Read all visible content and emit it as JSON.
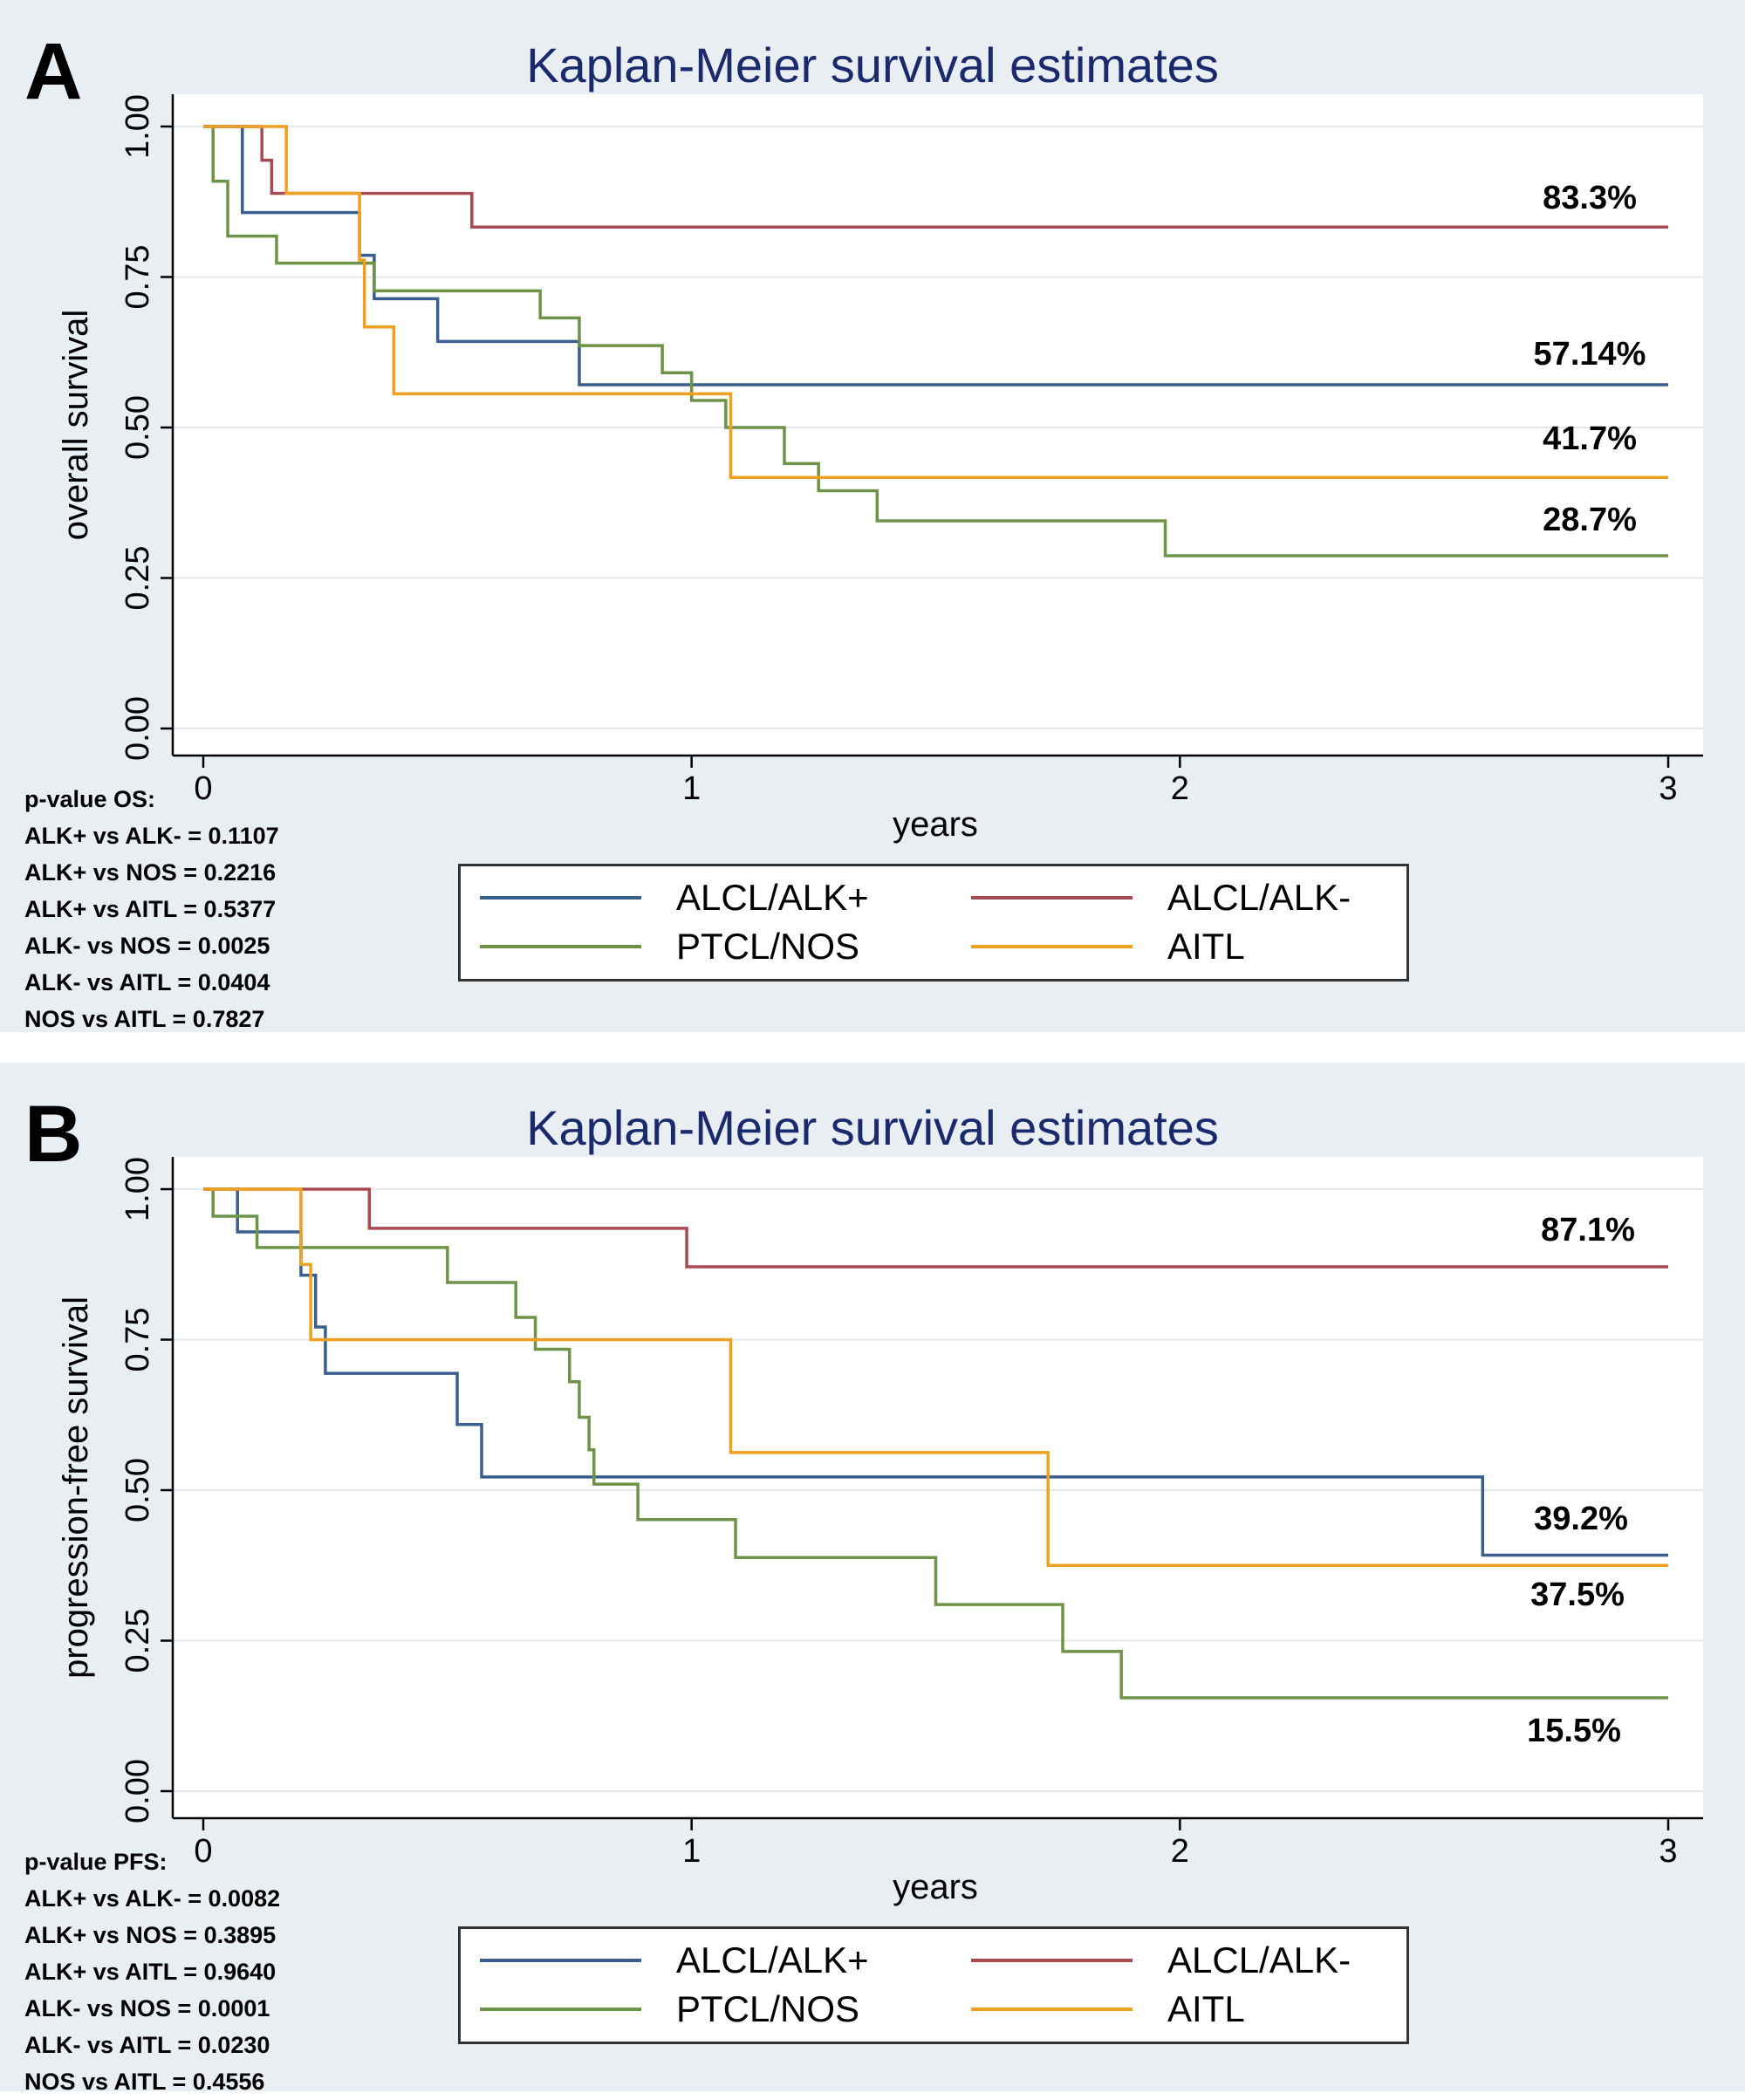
{
  "colors": {
    "ALCL/ALK+": "#3a5f8f",
    "ALCL/ALK-": "#a84a52",
    "PTCL/NOS": "#6e9348",
    "AITL": "#f0a020"
  },
  "chart_data": [
    {
      "type": "line",
      "panel_label": "A",
      "title": "Kaplan-Meier survival estimates",
      "xlabel": "years",
      "ylabel": "overall survival",
      "xlim": [
        0,
        3
      ],
      "ylim": [
        0,
        1
      ],
      "xticks": [
        "0",
        "1",
        "2",
        "3"
      ],
      "yticks": [
        "0.00",
        "0.25",
        "0.50",
        "0.75",
        "1.00"
      ],
      "grid": true,
      "legend": [
        "ALCL/ALK+",
        "ALCL/ALK-",
        "PTCL/NOS",
        "AITL"
      ],
      "series": [
        {
          "name": "ALCL/ALK+",
          "steps": [
            [
              0,
              1.0
            ],
            [
              0.08,
              0.857
            ],
            [
              0.32,
              0.786
            ],
            [
              0.35,
              0.714
            ],
            [
              0.48,
              0.643
            ],
            [
              0.77,
              0.571
            ],
            [
              3.0,
              0.571
            ]
          ]
        },
        {
          "name": "ALCL/ALK-",
          "steps": [
            [
              0,
              1.0
            ],
            [
              0.12,
              0.944
            ],
            [
              0.14,
              0.889
            ],
            [
              0.55,
              0.833
            ],
            [
              3.0,
              0.833
            ]
          ]
        },
        {
          "name": "PTCL/NOS",
          "steps": [
            [
              0,
              1.0
            ],
            [
              0.02,
              0.909
            ],
            [
              0.05,
              0.818
            ],
            [
              0.15,
              0.773
            ],
            [
              0.35,
              0.727
            ],
            [
              0.69,
              0.682
            ],
            [
              0.77,
              0.636
            ],
            [
              0.94,
              0.591
            ],
            [
              1.0,
              0.545
            ],
            [
              1.07,
              0.5
            ],
            [
              1.19,
              0.44
            ],
            [
              1.26,
              0.395
            ],
            [
              1.38,
              0.345
            ],
            [
              1.97,
              0.287
            ],
            [
              3.0,
              0.287
            ]
          ]
        },
        {
          "name": "AITL",
          "steps": [
            [
              0,
              1.0
            ],
            [
              0.17,
              0.889
            ],
            [
              0.32,
              0.778
            ],
            [
              0.33,
              0.667
            ],
            [
              0.39,
              0.556
            ],
            [
              1.08,
              0.417
            ],
            [
              3.0,
              0.417
            ]
          ]
        }
      ],
      "annotations": [
        {
          "text": "83.3%",
          "value": 0.833
        },
        {
          "text": "57.14%",
          "value": 0.5714
        },
        {
          "text": "41.7%",
          "value": 0.417
        },
        {
          "text": "28.7%",
          "value": 0.287
        }
      ],
      "pvalues": {
        "header": "p-value OS:",
        "lines": [
          "ALK+ vs ALK- = 0.1107",
          "ALK+ vs NOS = 0.2216",
          "ALK+ vs AITL = 0.5377",
          "ALK- vs  NOS  = 0.0025",
          "ALK- vs AITL = 0.0404",
          "NOS  vs  AITL = 0.7827"
        ]
      }
    },
    {
      "type": "line",
      "panel_label": "B",
      "title": "Kaplan-Meier survival estimates",
      "xlabel": "years",
      "ylabel": "progression-free survival",
      "xlim": [
        0,
        3
      ],
      "ylim": [
        0,
        1
      ],
      "xticks": [
        "0",
        "1",
        "2",
        "3"
      ],
      "yticks": [
        "0.00",
        "0.25",
        "0.50",
        "0.75",
        "1.00"
      ],
      "grid": true,
      "legend": [
        "ALCL/ALK+",
        "ALCL/ALK-",
        "PTCL/NOS",
        "AITL"
      ],
      "series": [
        {
          "name": "ALCL/ALK+",
          "steps": [
            [
              0,
              1.0
            ],
            [
              0.07,
              0.929
            ],
            [
              0.2,
              0.857
            ],
            [
              0.23,
              0.771
            ],
            [
              0.25,
              0.694
            ],
            [
              0.52,
              0.609
            ],
            [
              0.57,
              0.522
            ],
            [
              2.62,
              0.392
            ],
            [
              3.0,
              0.392
            ]
          ]
        },
        {
          "name": "ALCL/ALK-",
          "steps": [
            [
              0,
              1.0
            ],
            [
              0.34,
              0.935
            ],
            [
              0.99,
              0.871
            ],
            [
              3.0,
              0.871
            ]
          ]
        },
        {
          "name": "PTCL/NOS",
          "steps": [
            [
              0,
              1.0
            ],
            [
              0.02,
              0.955
            ],
            [
              0.11,
              0.903
            ],
            [
              0.5,
              0.845
            ],
            [
              0.64,
              0.787
            ],
            [
              0.68,
              0.734
            ],
            [
              0.75,
              0.68
            ],
            [
              0.77,
              0.621
            ],
            [
              0.79,
              0.567
            ],
            [
              0.8,
              0.51
            ],
            [
              0.89,
              0.451
            ],
            [
              1.09,
              0.388
            ],
            [
              1.5,
              0.31
            ],
            [
              1.76,
              0.232
            ],
            [
              1.88,
              0.155
            ],
            [
              3.0,
              0.155
            ]
          ]
        },
        {
          "name": "AITL",
          "steps": [
            [
              0,
              1.0
            ],
            [
              0.2,
              0.875
            ],
            [
              0.22,
              0.75
            ],
            [
              1.08,
              0.5625
            ],
            [
              1.73,
              0.375
            ],
            [
              3.0,
              0.375
            ]
          ]
        }
      ],
      "annotations": [
        {
          "text": "87.1%",
          "value": 0.871
        },
        {
          "text": "39.2%",
          "value": 0.392
        },
        {
          "text": "37.5%",
          "value": 0.375
        },
        {
          "text": "15.5%",
          "value": 0.155
        }
      ],
      "pvalues": {
        "header": "p-value PFS:",
        "lines": [
          "ALK+ vs ALK- = 0.0082",
          "ALK+ vs NOS = 0.3895",
          "ALK+ vs AITL = 0.9640",
          "ALK- vs  NOS  = 0.0001",
          "ALK- vs AITL = 0.0230",
          "NOS  vs  AITL = 0.4556"
        ]
      }
    }
  ]
}
